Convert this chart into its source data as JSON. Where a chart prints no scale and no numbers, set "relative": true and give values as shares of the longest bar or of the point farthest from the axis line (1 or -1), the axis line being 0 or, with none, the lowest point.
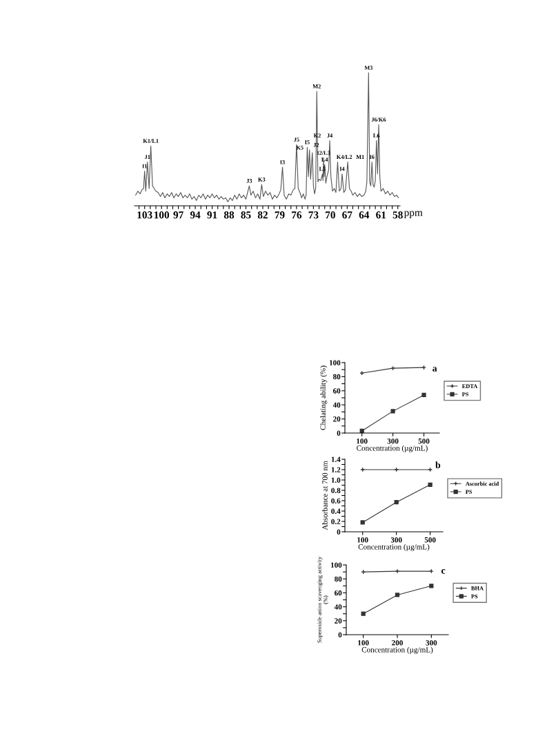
{
  "chart_data": [
    {
      "type": "line",
      "relative": true,
      "xlabel": "ppm",
      "tick_labels": "x",
      "grid": false,
      "legend": false,
      "marker": "none",
      "line_style": "solid",
      "xlim": [
        104.8,
        57.6
      ],
      "xticks": [
        {
          "value": 104,
          "label": null
        },
        103,
        {
          "value": 102,
          "label": null
        },
        {
          "value": 101,
          "label": null
        },
        100,
        {
          "value": 99,
          "label": null
        },
        {
          "value": 98,
          "label": null
        },
        97,
        {
          "value": 96,
          "label": null
        },
        {
          "value": 95,
          "label": null
        },
        94,
        {
          "value": 93,
          "label": null
        },
        {
          "value": 92,
          "label": null
        },
        91,
        {
          "value": 90,
          "label": null
        },
        {
          "value": 89,
          "label": null
        },
        88,
        {
          "value": 87,
          "label": null
        },
        {
          "value": 86,
          "label": null
        },
        85,
        {
          "value": 84,
          "label": null
        },
        {
          "value": 83,
          "label": null
        },
        82,
        {
          "value": 81,
          "label": null
        },
        {
          "value": 80,
          "label": null
        },
        79,
        {
          "value": 78,
          "label": null
        },
        {
          "value": 77,
          "label": null
        },
        76,
        {
          "value": 75,
          "label": null
        },
        {
          "value": 74,
          "label": null
        },
        73,
        {
          "value": 72,
          "label": null
        },
        {
          "value": 71,
          "label": null
        },
        70,
        {
          "value": 69,
          "label": null
        },
        {
          "value": 68,
          "label": null
        },
        67,
        {
          "value": 66,
          "label": null
        },
        {
          "value": 65,
          "label": null
        },
        64,
        {
          "value": 63,
          "label": null
        },
        {
          "value": 62,
          "label": null
        },
        61,
        {
          "value": 60,
          "label": null
        },
        {
          "value": 59,
          "label": null
        },
        58
      ],
      "series": [
        {
          "color": "#555555",
          "x": [
            104.6,
            104.2,
            103.8,
            103.5,
            103.2,
            103.0,
            102.8,
            102.5,
            102.2,
            101.9,
            101.6,
            101.3,
            101.0,
            100.6,
            100.2,
            99.8,
            99.4,
            99.0,
            98.6,
            98.2,
            97.8,
            97.4,
            97.0,
            96.6,
            96.2,
            95.8,
            95.4,
            95.0,
            94.6,
            94.2,
            93.8,
            93.4,
            93.0,
            92.6,
            92.2,
            91.8,
            91.4,
            91.0,
            90.6,
            90.2,
            89.8,
            89.4,
            89.0,
            88.6,
            88.2,
            87.8,
            87.4,
            87.0,
            86.6,
            86.2,
            85.8,
            85.4,
            85.0,
            84.7,
            84.4,
            84.1,
            83.7,
            83.3,
            82.9,
            82.5,
            82.2,
            81.9,
            81.5,
            81.1,
            80.7,
            80.3,
            79.9,
            79.5,
            79.1,
            78.8,
            78.5,
            78.2,
            77.8,
            77.4,
            77.0,
            76.6,
            76.3,
            76.0,
            75.7,
            75.4,
            75.1,
            74.8,
            74.5,
            74.3,
            74.1,
            73.9,
            73.7,
            73.5,
            73.2,
            73.0,
            72.8,
            72.6,
            72.4,
            72.2,
            72.0,
            71.7,
            71.4,
            71.3,
            71.2,
            71.1,
            71.0,
            70.8,
            70.6,
            70.3,
            70.1,
            69.9,
            69.6,
            69.3,
            69.0,
            68.7,
            68.4,
            68.1,
            67.9,
            67.6,
            67.3,
            66.9,
            66.6,
            66.3,
            66.0,
            65.6,
            65.2,
            64.8,
            64.4,
            64.0,
            63.7,
            63.5,
            63.2,
            63.0,
            62.8,
            62.6,
            62.4,
            62.2,
            62.0,
            61.8,
            61.6,
            61.4,
            61.2,
            61.0,
            60.6,
            60.2,
            59.8,
            59.4,
            59.0,
            58.6,
            58.2,
            57.9
          ],
          "values": [
            0.08,
            0.11,
            0.09,
            0.12,
            0.13,
            0.26,
            0.11,
            0.33,
            0.13,
            0.45,
            0.15,
            0.13,
            0.11,
            0.1,
            0.07,
            0.1,
            0.06,
            0.09,
            0.07,
            0.1,
            0.06,
            0.09,
            0.07,
            0.1,
            0.06,
            0.08,
            0.06,
            0.09,
            0.05,
            0.07,
            0.04,
            0.08,
            0.06,
            0.09,
            0.05,
            0.08,
            0.06,
            0.09,
            0.06,
            0.08,
            0.05,
            0.07,
            0.05,
            0.06,
            0.03,
            0.06,
            0.04,
            0.08,
            0.05,
            0.09,
            0.06,
            0.08,
            0.05,
            0.1,
            0.15,
            0.08,
            0.11,
            0.06,
            0.09,
            0.05,
            0.16,
            0.07,
            0.11,
            0.08,
            0.1,
            0.05,
            0.08,
            0.06,
            0.09,
            0.12,
            0.29,
            0.08,
            0.05,
            0.09,
            0.08,
            0.12,
            0.13,
            0.46,
            0.13,
            0.1,
            0.06,
            0.09,
            0.05,
            0.08,
            0.44,
            0.22,
            0.42,
            0.2,
            0.4,
            0.15,
            0.09,
            0.13,
            0.86,
            0.18,
            0.2,
            0.19,
            0.24,
            0.19,
            0.36,
            0.22,
            0.31,
            0.17,
            0.22,
            0.27,
            0.49,
            0.22,
            0.11,
            0.13,
            0.1,
            0.33,
            0.11,
            0.13,
            0.24,
            0.1,
            0.12,
            0.33,
            0.13,
            0.11,
            0.08,
            0.1,
            0.07,
            0.09,
            0.07,
            0.08,
            0.11,
            0.18,
            1.0,
            0.18,
            0.15,
            0.33,
            0.16,
            0.14,
            0.19,
            0.49,
            0.24,
            0.61,
            0.22,
            0.11,
            0.13,
            0.09,
            0.11,
            0.08,
            0.1,
            0.07,
            0.08,
            0.06
          ]
        }
      ],
      "annotations": [
        {
          "text": "I1",
          "x": 103.0,
          "y": 0.26
        },
        {
          "text": "J1",
          "x": 102.5,
          "y": 0.33
        },
        {
          "text": "K1/L1",
          "x": 101.9,
          "y": 0.45
        },
        {
          "text": "J3",
          "x": 84.4,
          "y": 0.15
        },
        {
          "text": "K3",
          "x": 82.2,
          "y": 0.16
        },
        {
          "text": "I3",
          "x": 78.5,
          "y": 0.29
        },
        {
          "text": "J5",
          "x": 76.0,
          "y": 0.46
        },
        {
          "text": "I5",
          "x": 74.1,
          "y": 0.44
        },
        {
          "text": "J2",
          "x": 73.7,
          "y": 0.42
        },
        {
          "text": "K5",
          "x": 73.2,
          "y": 0.4
        },
        {
          "text": "M2",
          "x": 72.4,
          "y": 0.86
        },
        {
          "text": "L5",
          "x": 71.4,
          "y": 0.24
        },
        {
          "text": "I2/L3",
          "x": 71.2,
          "y": 0.36
        },
        {
          "text": "L4",
          "x": 71.0,
          "y": 0.31
        },
        {
          "text": "J4",
          "x": 70.1,
          "y": 0.49
        },
        {
          "text": "K2",
          "x": 70.1,
          "y": 0.49
        },
        {
          "text": "K4/L2",
          "x": 68.7,
          "y": 0.33
        },
        {
          "text": "I4",
          "x": 67.9,
          "y": 0.24
        },
        {
          "text": "M1",
          "x": 66.9,
          "y": 0.33
        },
        {
          "text": "M3",
          "x": 63.2,
          "y": 1.0
        },
        {
          "text": "I6",
          "x": 62.6,
          "y": 0.33
        },
        {
          "text": "L6",
          "x": 61.8,
          "y": 0.49
        },
        {
          "text": "J6/K6",
          "x": 61.4,
          "y": 0.61
        }
      ]
    },
    {
      "type": "line",
      "xlabel": "Concentration (µg/mL)",
      "ylabel": "Chelating ability (%)",
      "grid": false,
      "legend": "right",
      "line_style": "solid",
      "xlim": [
        -10,
        600
      ],
      "xticks": [
        100,
        300,
        500
      ],
      "ylim": [
        0,
        100
      ],
      "yticks": [
        0,
        {
          "value": 10,
          "label": null
        },
        20,
        {
          "value": 30,
          "label": null
        },
        40,
        {
          "value": 50,
          "label": null
        },
        60,
        {
          "value": 70,
          "label": null
        },
        80,
        {
          "value": 90,
          "label": null
        },
        100
      ],
      "x": [
        100,
        300,
        500
      ],
      "series": [
        {
          "name": "EDTA",
          "color": "#333333",
          "marker": "cross",
          "values": [
            85,
            92,
            93
          ]
        },
        {
          "name": "PS",
          "color": "#333333",
          "marker": "square",
          "values": [
            3,
            31,
            54
          ]
        }
      ],
      "annotations": [
        "a"
      ]
    },
    {
      "type": "line",
      "xlabel": "Concentration (µg/mL)",
      "ylabel": "Absorbance at 700 nm",
      "grid": false,
      "legend": "right",
      "line_style": "solid",
      "xlim": [
        -5,
        575
      ],
      "xticks": [
        100,
        300,
        500
      ],
      "ylim": [
        0,
        1.4
      ],
      "yticks": [
        0,
        {
          "value": 0.1,
          "label": null
        },
        0.2,
        {
          "value": 0.3,
          "label": null
        },
        0.4,
        {
          "value": 0.5,
          "label": null
        },
        0.6,
        {
          "value": 0.7,
          "label": null
        },
        0.8,
        {
          "value": 0.9,
          "label": null
        },
        {
          "value": 1.0,
          "label": "1.0"
        },
        {
          "value": 1.1,
          "label": null
        },
        1.2,
        {
          "value": 1.3,
          "label": null
        },
        1.4
      ],
      "x": [
        100,
        300,
        500
      ],
      "series": [
        {
          "name": "Ascorbic acid",
          "color": "#333333",
          "marker": "cross",
          "values": [
            1.2,
            1.2,
            1.2
          ]
        },
        {
          "name": "PS",
          "color": "#333333",
          "marker": "square",
          "values": [
            0.18,
            0.57,
            0.91
          ]
        }
      ],
      "annotations": [
        "b"
      ]
    },
    {
      "type": "line",
      "xlabel": "Concentration (µg/mL)",
      "ylabel": "Superoxide anion scavenging activity\n(%)",
      "grid": false,
      "legend": "right",
      "line_style": "solid",
      "xlim": [
        50,
        350
      ],
      "xticks": [
        100,
        200,
        300
      ],
      "ylim": [
        0,
        100
      ],
      "yticks": [
        0,
        {
          "value": 10,
          "label": null
        },
        20,
        {
          "value": 30,
          "label": null
        },
        40,
        {
          "value": 50,
          "label": null
        },
        60,
        {
          "value": 70,
          "label": null
        },
        80,
        {
          "value": 90,
          "label": null
        },
        100
      ],
      "x": [
        100,
        200,
        300
      ],
      "series": [
        {
          "name": "BHA",
          "color": "#333333",
          "marker": "cross",
          "values": [
            90,
            91,
            91
          ]
        },
        {
          "name": "PS",
          "color": "#333333",
          "marker": "square",
          "values": [
            30,
            57,
            70
          ]
        }
      ],
      "annotations": [
        "c"
      ]
    }
  ]
}
